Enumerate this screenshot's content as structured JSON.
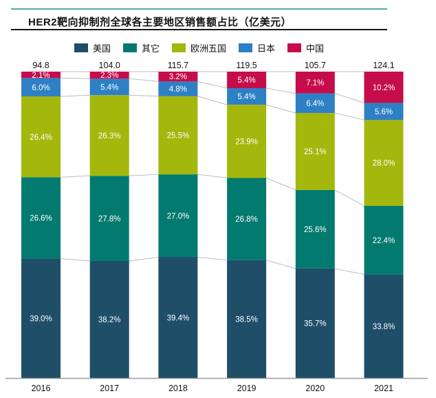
{
  "header": {
    "title": "HER2靶向抑制剂全球各主要地区销售额占比（亿美元）"
  },
  "chart_data": {
    "type": "bar",
    "stacked": true,
    "percent": true,
    "title": "HER2靶向抑制剂全球各主要地区销售额占比（亿美元）",
    "categories": [
      "2016",
      "2017",
      "2018",
      "2019",
      "2020",
      "2021"
    ],
    "totals": [
      94.8,
      104.0,
      115.7,
      119.5,
      105.7,
      124.1
    ],
    "series": [
      {
        "name": "美国",
        "color": "#1F4E69",
        "values": [
          39.0,
          38.2,
          39.4,
          38.5,
          35.7,
          33.8
        ]
      },
      {
        "name": "其它",
        "color": "#037A6F",
        "values": [
          26.6,
          27.8,
          27.0,
          26.8,
          25.6,
          22.4
        ]
      },
      {
        "name": "欧洲五国",
        "color": "#A4B70D",
        "values": [
          26.4,
          26.3,
          25.5,
          23.9,
          25.1,
          28.0
        ]
      },
      {
        "name": "日本",
        "color": "#2E80C4",
        "values": [
          6.0,
          5.4,
          4.8,
          5.4,
          6.4,
          5.6
        ]
      },
      {
        "name": "中国",
        "color": "#C50D4B",
        "values": [
          2.1,
          2.3,
          3.2,
          5.4,
          7.1,
          10.2
        ]
      }
    ],
    "value_suffix": "%",
    "legend_position": "top-center",
    "grid": false,
    "accent_colors": {
      "header_rule_top": "#57A5AB",
      "header_rule_bottom": "#161616",
      "connector_line": "#BBBBBB",
      "axis_line": "#9A9A9A",
      "label_inside": "#FFFFFF",
      "label_outside": "#111111"
    }
  }
}
